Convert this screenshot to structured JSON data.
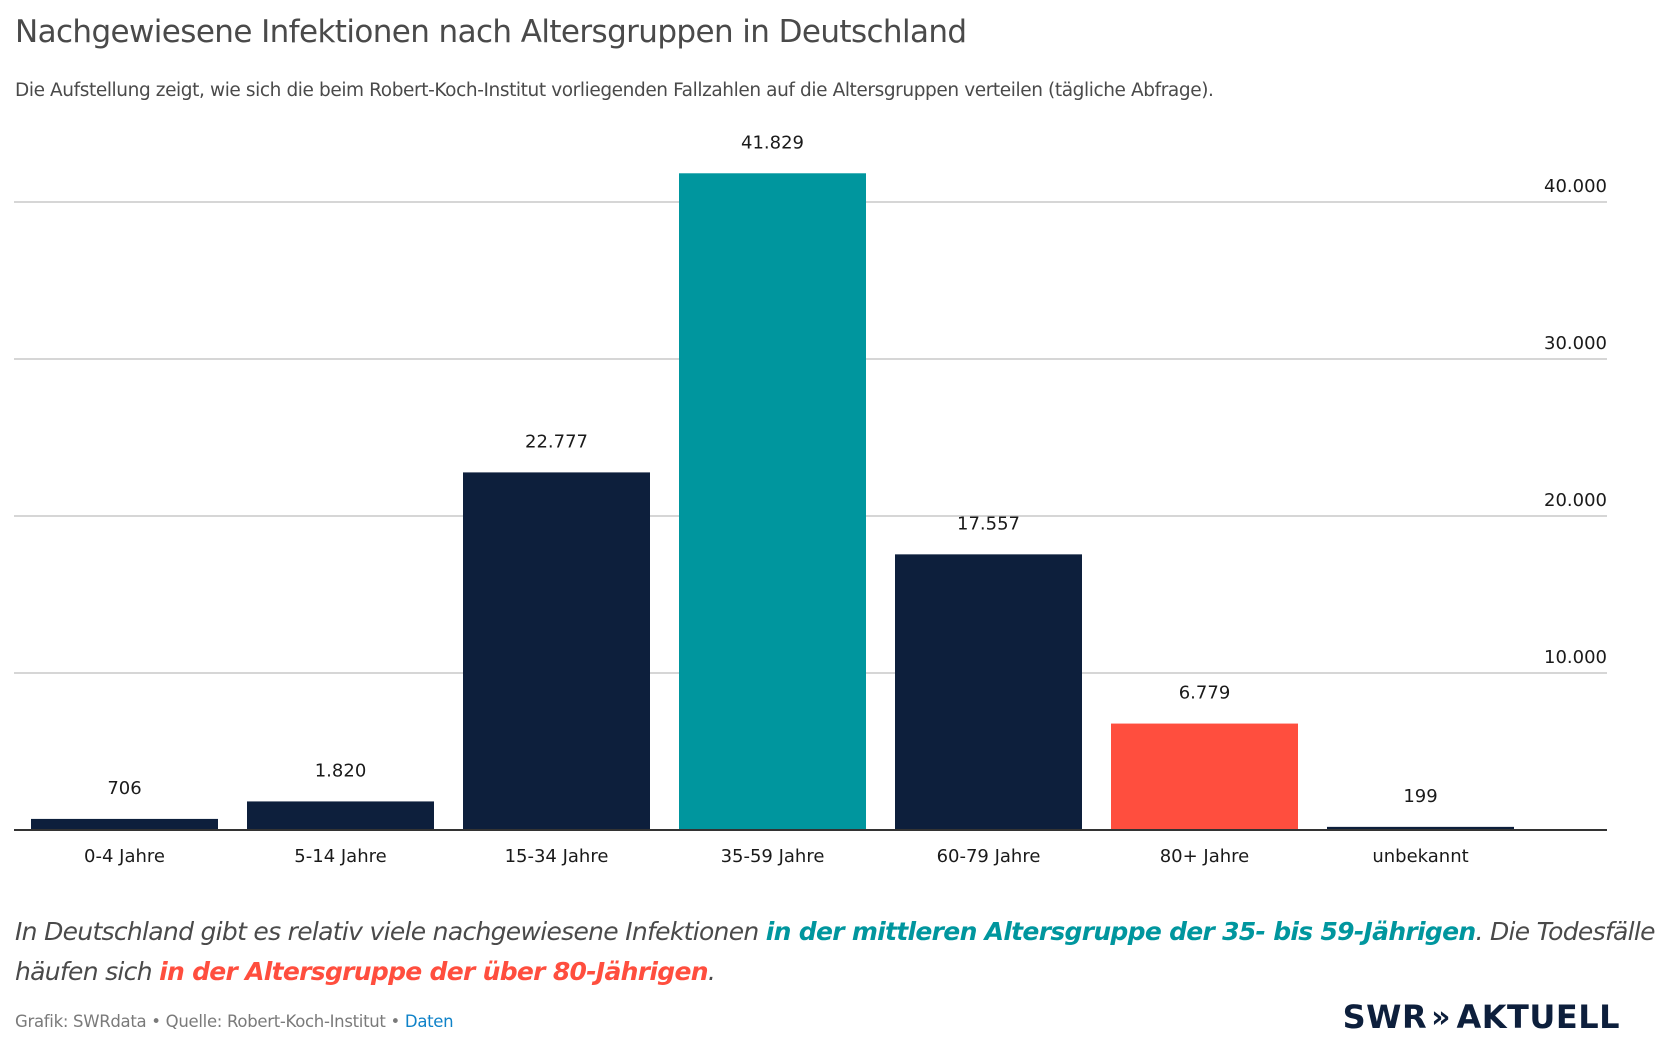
{
  "header": {
    "title": "Nachgewiesene Infektionen nach Altersgruppen in Deutschland",
    "subtitle": "Die Aufstellung zeigt, wie sich die beim Robert-Koch-Institut vorliegenden Fallzahlen auf die Altersgruppen verteilen (tägliche Abfrage)."
  },
  "chart_data": {
    "type": "bar",
    "title": "Nachgewiesene Infektionen nach Altersgruppen in Deutschland",
    "xlabel": "",
    "ylabel": "",
    "categories": [
      "0-4 Jahre",
      "5-14 Jahre",
      "15-34 Jahre",
      "35-59 Jahre",
      "60-79 Jahre",
      "80+ Jahre",
      "unbekannt"
    ],
    "values": [
      706,
      1820,
      22777,
      41829,
      17557,
      6779,
      199
    ],
    "value_labels": [
      "706",
      "1.820",
      "22.777",
      "41.829",
      "17.557",
      "6.779",
      "199"
    ],
    "bar_colors": [
      "#0d1f3c",
      "#0d1f3c",
      "#0d1f3c",
      "#00969e",
      "#0d1f3c",
      "#ff4e3e",
      "#0d1f3c"
    ],
    "ylim": [
      0,
      43000
    ],
    "yticks": [
      10000,
      20000,
      30000,
      40000
    ],
    "ytick_labels": [
      "10.000",
      "20.000",
      "30.000",
      "40.000"
    ],
    "y_axis_side": "right",
    "grid": true
  },
  "annotation": {
    "part1": "In Deutschland gibt es relativ viele nachgewiesene Infektionen ",
    "highlight1": "in der mittleren Altersgruppe der 35- bis 59-Jährigen",
    "part2": ". Die Todesfälle häufen sich ",
    "highlight2": "in der Altersgruppe der über 80-Jährigen",
    "part3": ".",
    "highlight1_color": "#00969e",
    "highlight2_color": "#ff4e3e"
  },
  "footer": {
    "credit": "Grafik: SWRdata • Quelle: Robert-Koch-Institut • ",
    "data_link": "Daten"
  },
  "logo": {
    "brand": "SWR",
    "chevrons": "»",
    "product": "AKTUELL"
  }
}
